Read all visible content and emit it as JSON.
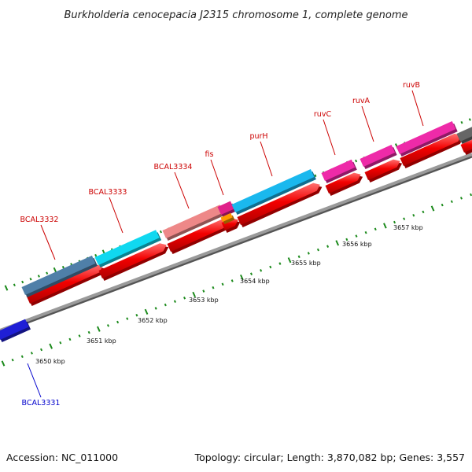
{
  "title": "Burkholderia cenocepacia J2315 chromosome 1, complete genome",
  "footer": {
    "accession": "Accession: NC_011000",
    "info": "Topology: circular; Length: 3,870,082 bp; Genes: 3,557"
  },
  "colors": {
    "cds": "#f20000",
    "backbone": "#9a9a9a",
    "ticks": "#1b8a1b",
    "forward_label": "#cc0000",
    "reverse_label": "#0000cc",
    "reverse_gene": "#1f1fd6"
  },
  "scale_labels": [
    "3650 kbp",
    "3651 kbp",
    "3652 kbp",
    "3653 kbp",
    "3654 kbp",
    "3655 kbp",
    "3656 kbp",
    "3657 kbp"
  ],
  "genes": [
    {
      "name": "BCAL3331",
      "strand": "reverse",
      "feature_color": "#1f1fd6",
      "cog_color": ""
    },
    {
      "name": "BCAL3332",
      "strand": "forward",
      "feature_color": "#f20000",
      "cog_color": "#4f7fa8"
    },
    {
      "name": "BCAL3333",
      "strand": "forward",
      "feature_color": "#f20000",
      "cog_color": "#10d8f0"
    },
    {
      "name": "BCAL3334",
      "strand": "forward",
      "feature_color": "#f20000",
      "cog_color": "#ee8888"
    },
    {
      "name": "fis",
      "strand": "forward",
      "feature_color": "#f20000",
      "cog_color": "#e0208a"
    },
    {
      "name": "purH",
      "strand": "forward",
      "feature_color": "#f20000",
      "cog_color": "#1ab8ee"
    },
    {
      "name": "ruvC",
      "strand": "forward",
      "feature_color": "#f20000",
      "cog_color": "#ee2aa8"
    },
    {
      "name": "ruvA",
      "strand": "forward",
      "feature_color": "#f20000",
      "cog_color": "#ee2aa8"
    },
    {
      "name": "ruvB",
      "strand": "forward",
      "feature_color": "#f20000",
      "cog_color": "#ee2aa8"
    }
  ]
}
